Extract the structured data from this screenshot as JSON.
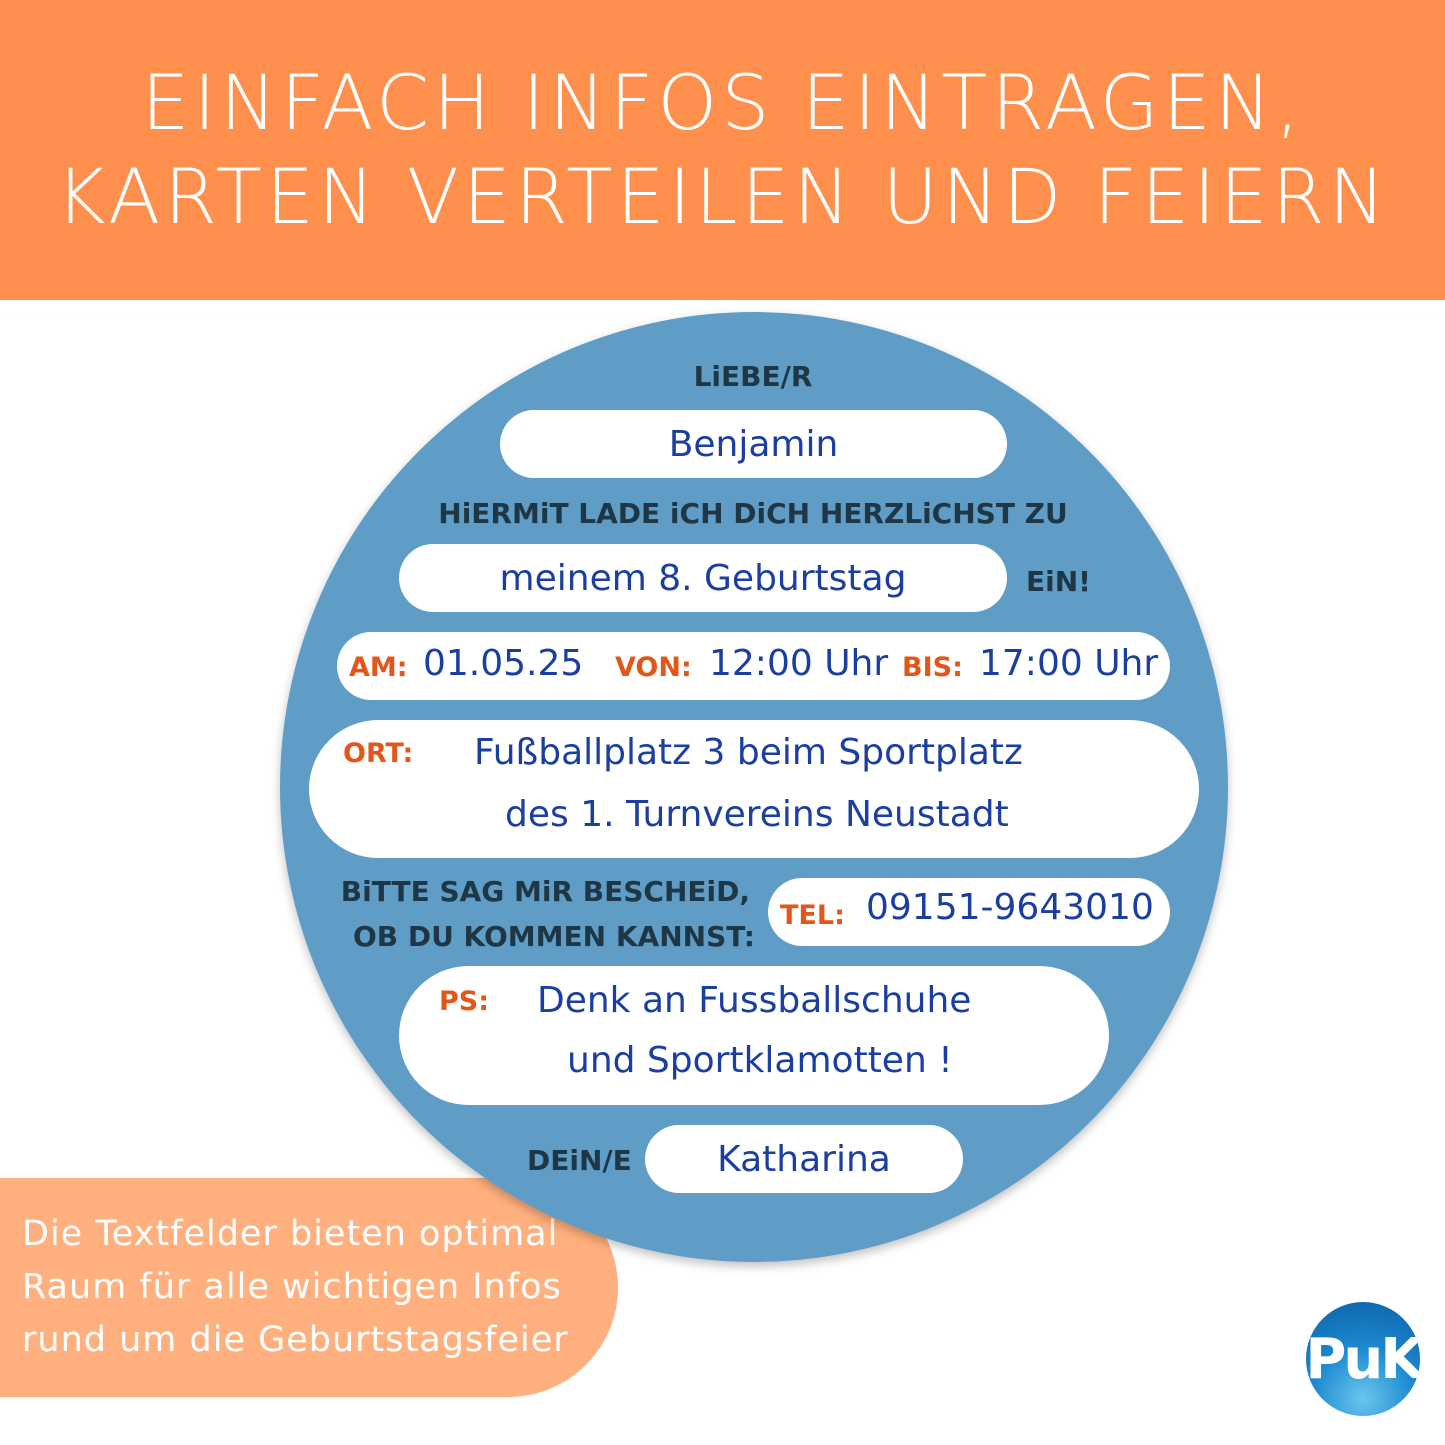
{
  "header": {
    "line1": "EINFACH INFOS EINTRAGEN,",
    "line2": "KARTEN VERTEILEN UND FEIERN"
  },
  "card": {
    "dear_label": "LiEBE/R",
    "guest_name": "Benjamin",
    "invite_text": "HiERMiT LADE iCH DiCH HERZLiCHST ZU",
    "occasion": "meinem 8. Geburtstag",
    "occasion_suffix": "EiN!",
    "date_label": "AM:",
    "date": "01.05.25",
    "from_label": "VON:",
    "from": "12:00 Uhr",
    "to_label": "BIS:",
    "to": "17:00 Uhr",
    "place_label": "ORT:",
    "place_line1": "Fußballplatz 3 beim Sportplatz",
    "place_line2": "des 1. Turnvereins Neustadt",
    "rsvp_line1": "BiTTE SAG MiR BESCHEiD,",
    "rsvp_line2": "OB DU KOMMEN KANNST:",
    "tel_label": "TEL:",
    "tel": "09151-9643010",
    "ps_label": "PS:",
    "ps_line1": "Denk an Fussballschuhe",
    "ps_line2": "und Sportklamotten !",
    "from_person_label": "DEiN/E",
    "from_person": "Katharina"
  },
  "callout": {
    "line1": "Die Textfelder bieten optimal",
    "line2": "Raum für alle wichtigen Infos",
    "line3": "rund um die Geburtstagsfeier"
  },
  "logo": {
    "text": "PuK"
  },
  "colors": {
    "header": "#ff8f4d",
    "callout": "#ffb07e",
    "circle": "#5f9cc6",
    "text_blue": "#1a3fa0",
    "label_orange": "#e2561a"
  }
}
